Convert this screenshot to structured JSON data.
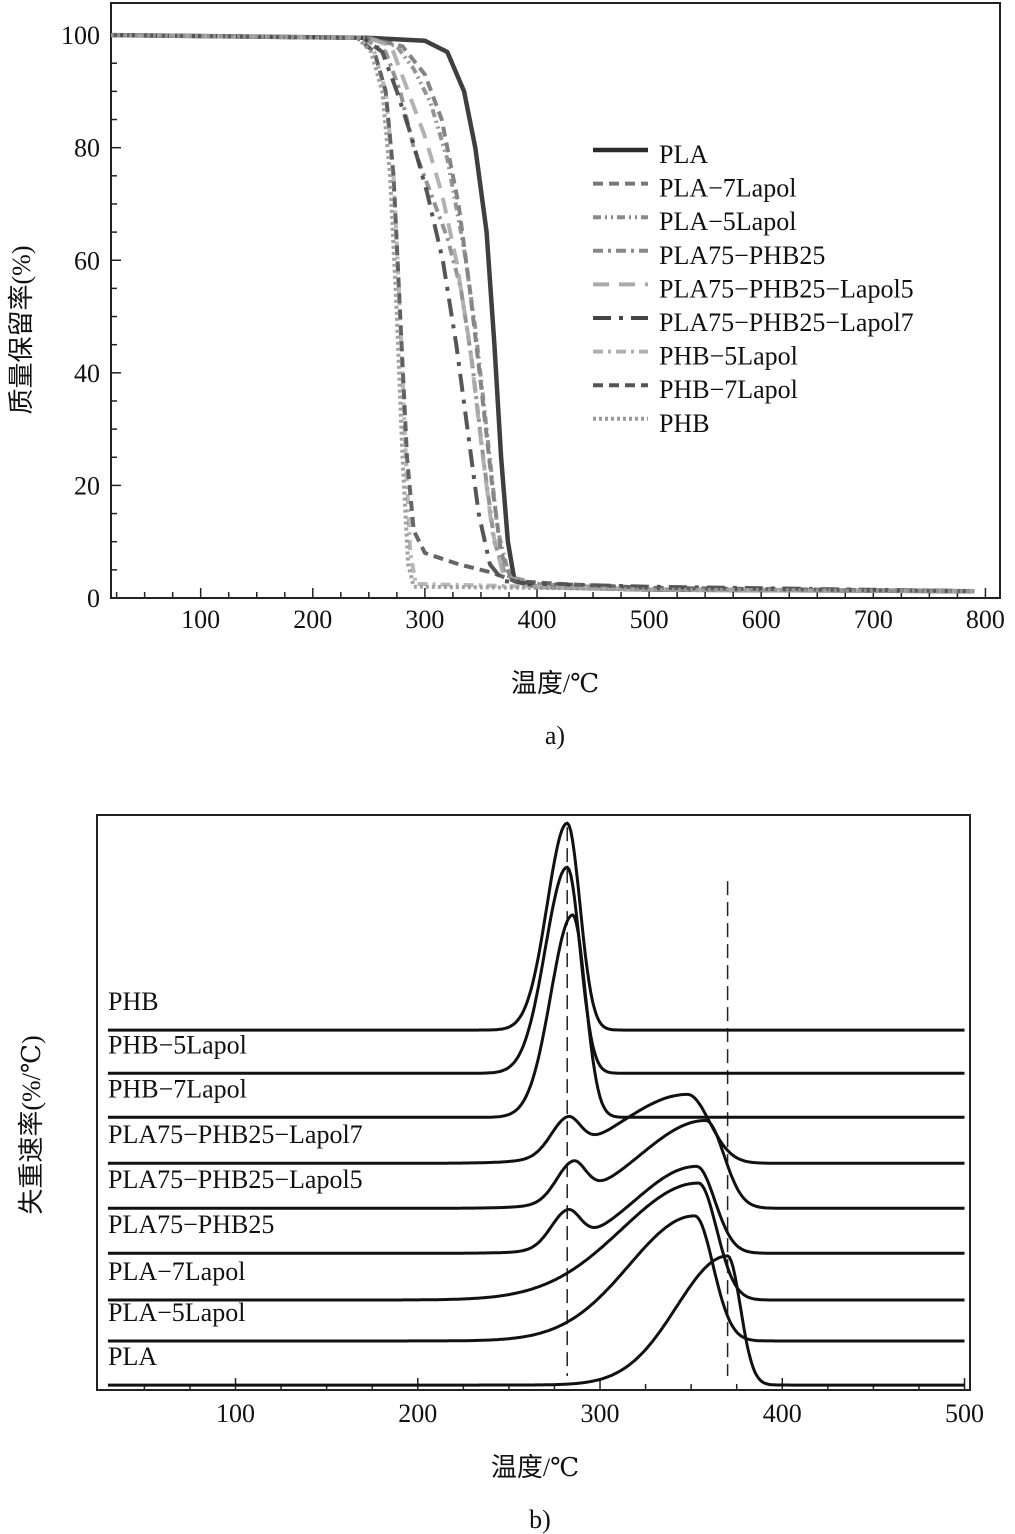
{
  "chart_data": [
    {
      "type": "line",
      "panel_label": "a)",
      "xlabel": "温度/℃",
      "ylabel": "质量保留率(%)",
      "xlim": [
        20,
        813
      ],
      "ylim": [
        0,
        105.7
      ],
      "xticks": [
        100,
        200,
        300,
        400,
        500,
        600,
        700,
        800
      ],
      "yticks": [
        0,
        20,
        40,
        60,
        80,
        100
      ],
      "grid": false,
      "legend_position": "right-center",
      "series": [
        {
          "name": "PLA",
          "color": "#2a2a2a",
          "dash": "solid",
          "x": [
            20,
            250,
            300,
            320,
            335,
            345,
            355,
            362,
            368,
            374,
            380,
            400,
            500,
            790
          ],
          "y": [
            100,
            99.5,
            99,
            97,
            90,
            80,
            65,
            45,
            25,
            10,
            3,
            2,
            1.5,
            1.2
          ]
        },
        {
          "name": "PLA−7Lapol",
          "color": "#777777",
          "dash": "dashed",
          "x": [
            20,
            250,
            280,
            300,
            315,
            330,
            340,
            350,
            360,
            368,
            378,
            400,
            500,
            790
          ],
          "y": [
            100,
            99.5,
            98,
            93,
            85,
            70,
            55,
            38,
            20,
            8,
            3,
            2,
            1.5,
            1.2
          ]
        },
        {
          "name": "PLA−5Lapol",
          "color": "#8a8a8a",
          "dash": "dash-dot-dot",
          "x": [
            20,
            250,
            275,
            290,
            305,
            320,
            335,
            345,
            355,
            365,
            375,
            400,
            500,
            790
          ],
          "y": [
            100,
            99.5,
            98,
            94,
            88,
            78,
            62,
            48,
            30,
            12,
            4,
            2,
            1.5,
            1.2
          ]
        },
        {
          "name": "PLA75−PHB25",
          "color": "#888888",
          "dash": "dash-dot",
          "x": [
            20,
            245,
            265,
            278,
            290,
            305,
            320,
            332,
            342,
            352,
            362,
            372,
            400,
            500,
            790
          ],
          "y": [
            100,
            99.5,
            97,
            90,
            80,
            72,
            64,
            55,
            42,
            25,
            10,
            4,
            2.5,
            1.5,
            1.2
          ]
        },
        {
          "name": "PLA75−PHB25−Lapol5",
          "color": "#aaaaaa",
          "dash": "long-dash",
          "x": [
            20,
            250,
            270,
            285,
            300,
            315,
            328,
            340,
            350,
            360,
            370,
            400,
            500,
            790
          ],
          "y": [
            100,
            99.5,
            98,
            90,
            82,
            72,
            60,
            45,
            28,
            12,
            4,
            2,
            1.5,
            1.2
          ]
        },
        {
          "name": "PLA75−PHB25−Lapol7",
          "color": "#444444",
          "dash": "long-dash-dot",
          "x": [
            20,
            245,
            262,
            275,
            288,
            302,
            316,
            328,
            338,
            348,
            358,
            370,
            400,
            500,
            790
          ],
          "y": [
            100,
            99.5,
            97,
            90,
            82,
            72,
            60,
            45,
            30,
            15,
            6,
            3,
            2.5,
            2,
            1.2
          ]
        },
        {
          "name": "PHB−5Lapol",
          "color": "#b0b0b0",
          "dash": "dash-dot",
          "x": [
            20,
            240,
            255,
            265,
            272,
            278,
            283,
            287,
            292,
            400,
            500,
            790
          ],
          "y": [
            100,
            99.5,
            97,
            90,
            75,
            50,
            25,
            8,
            2.5,
            2,
            1.5,
            1.2
          ]
        },
        {
          "name": "PHB−7Lapol",
          "color": "#555555",
          "dash": "dashed",
          "x": [
            20,
            240,
            255,
            265,
            272,
            278,
            284,
            290,
            300,
            330,
            360,
            380,
            420,
            500,
            790
          ],
          "y": [
            100,
            99.5,
            97,
            90,
            75,
            50,
            25,
            12,
            8,
            6,
            4.5,
            3,
            2.5,
            1.8,
            1.2
          ]
        },
        {
          "name": "PHB",
          "color": "#999999",
          "dash": "dotted",
          "x": [
            20,
            240,
            252,
            262,
            269,
            275,
            280,
            285,
            290,
            400,
            500,
            790
          ],
          "y": [
            100,
            99.5,
            97,
            90,
            75,
            50,
            25,
            6,
            2,
            1.8,
            1.5,
            1.2
          ]
        }
      ]
    },
    {
      "type": "line",
      "panel_label": "b)",
      "xlabel": "温度/℃",
      "ylabel": "失重速率(%/℃)",
      "xlim": [
        24,
        503
      ],
      "ylim": [
        -0.11,
        12.67
      ],
      "y_units": "arbitrary (curves vertically offset)",
      "xticks": [
        100,
        200,
        300,
        400,
        500
      ],
      "x_range_drawn": [
        30,
        500
      ],
      "reference_lines": [
        282,
        370
      ],
      "grid": false,
      "series": [
        {
          "name": "PHB",
          "offset": 7.89,
          "peaks": [
            {
              "T": 282,
              "h": 4.6,
              "sl": 11,
              "sr": 7
            }
          ]
        },
        {
          "name": "PHB−5Lapol",
          "offset": 6.93,
          "peaks": [
            {
              "T": 282,
              "h": 4.58,
              "sl": 12,
              "sr": 7
            }
          ]
        },
        {
          "name": "PHB−7Lapol",
          "offset": 5.95,
          "peaks": [
            {
              "T": 285,
              "h": 4.5,
              "sl": 12,
              "sr": 7
            }
          ]
        },
        {
          "name": "PLA75−PHB25−Lapol7",
          "offset": 4.93,
          "peaks": [
            {
              "T": 282,
              "h": 0.75,
              "sl": 9,
              "sr": 7
            },
            {
              "T": 348,
              "h": 1.53,
              "sl": 36,
              "sr": 12
            }
          ]
        },
        {
          "name": "PLA75−PHB25−Lapol5",
          "offset": 3.93,
          "peaks": [
            {
              "T": 285,
              "h": 0.8,
              "sl": 9,
              "sr": 7
            },
            {
              "T": 358,
              "h": 1.95,
              "sl": 36,
              "sr": 10
            }
          ]
        },
        {
          "name": "PLA75−PHB25",
          "offset": 2.93,
          "peaks": [
            {
              "T": 282,
              "h": 0.75,
              "sl": 9,
              "sr": 7
            },
            {
              "T": 353,
              "h": 1.93,
              "sl": 34,
              "sr": 10
            }
          ]
        },
        {
          "name": "PLA−7Lapol",
          "offset": 1.89,
          "peaks": [
            {
              "T": 354,
              "h": 2.6,
              "sl": 42,
              "sr": 10
            }
          ]
        },
        {
          "name": "PLA−5Lapol",
          "offset": 0.98,
          "peaks": [
            {
              "T": 352,
              "h": 2.78,
              "sl": 36,
              "sr": 10
            }
          ]
        },
        {
          "name": "PLA",
          "offset": 0,
          "peaks": [
            {
              "T": 370,
              "h": 2.87,
              "sl": 28,
              "sr": 7
            }
          ]
        }
      ]
    }
  ]
}
